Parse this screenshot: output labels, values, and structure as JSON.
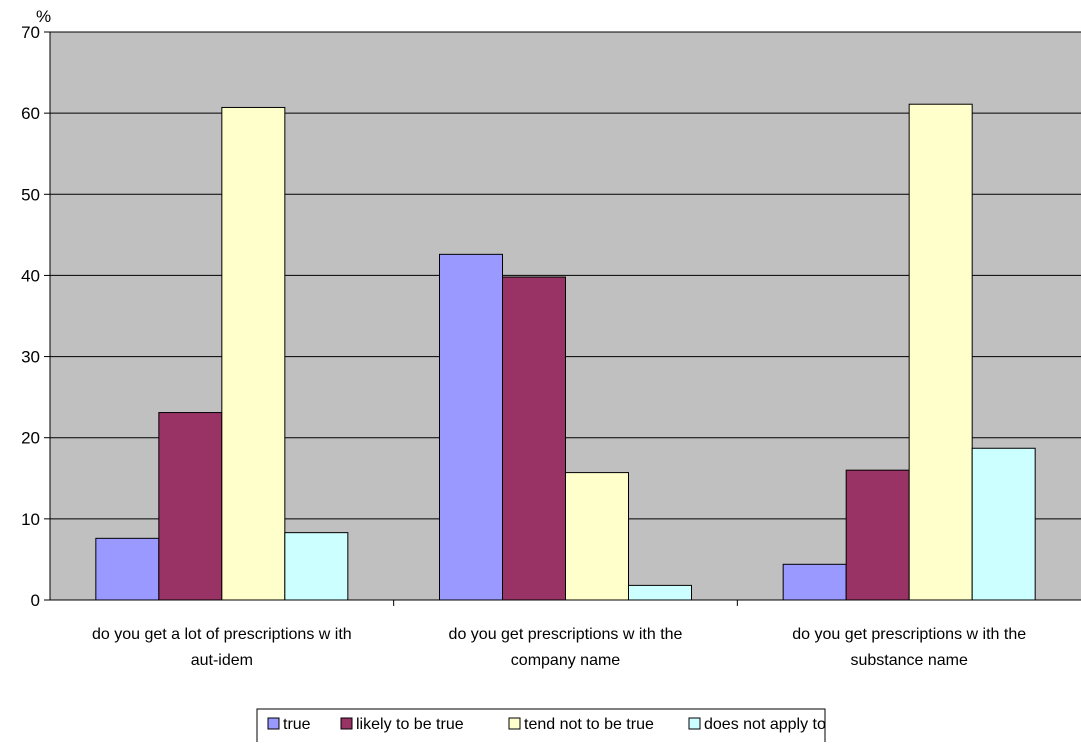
{
  "chart_data": {
    "type": "bar",
    "ylabel": "%",
    "ylim": [
      0,
      70
    ],
    "yticks": [
      0,
      10,
      20,
      30,
      40,
      50,
      60,
      70
    ],
    "grid": true,
    "legend_position": "bottom-center",
    "categories": [
      [
        "do you get a lot of prescriptions w ith",
        "aut-idem"
      ],
      [
        "do you get prescriptions w ith the",
        "company name"
      ],
      [
        "do you get prescriptions w ith the",
        "substance name"
      ]
    ],
    "series": [
      {
        "name": "true",
        "color": "#9999ff",
        "values": [
          7.6,
          42.6,
          4.4
        ]
      },
      {
        "name": "likely to be true",
        "color": "#993366",
        "values": [
          23.1,
          39.8,
          16.0
        ]
      },
      {
        "name": "tend not to be true",
        "color": "#ffffcc",
        "values": [
          60.7,
          15.7,
          61.1
        ]
      },
      {
        "name": "does not apply to",
        "color": "#ccffff",
        "values": [
          8.3,
          1.8,
          18.7
        ]
      }
    ],
    "plot_background": "#c0c0c0"
  }
}
